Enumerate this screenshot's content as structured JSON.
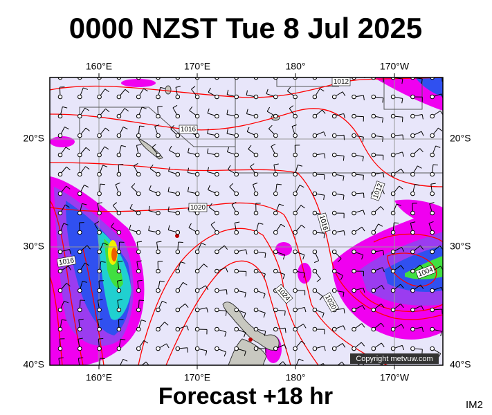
{
  "title": "0000 NZST Tue 8 Jul 2025",
  "subtitle": "Forecast +18 hr",
  "corner_label": "IM2",
  "copyright": "Copyright metvuw.com",
  "longitude_labels": [
    "160°E",
    "170°E",
    "180°",
    "170°W"
  ],
  "latitude_labels": [
    "20°S",
    "30°S",
    "40°S"
  ],
  "isobar_labels": [
    "1012",
    "1016",
    "1020",
    "1016",
    "1016",
    "1012",
    "1024",
    "1020",
    "1004"
  ]
}
